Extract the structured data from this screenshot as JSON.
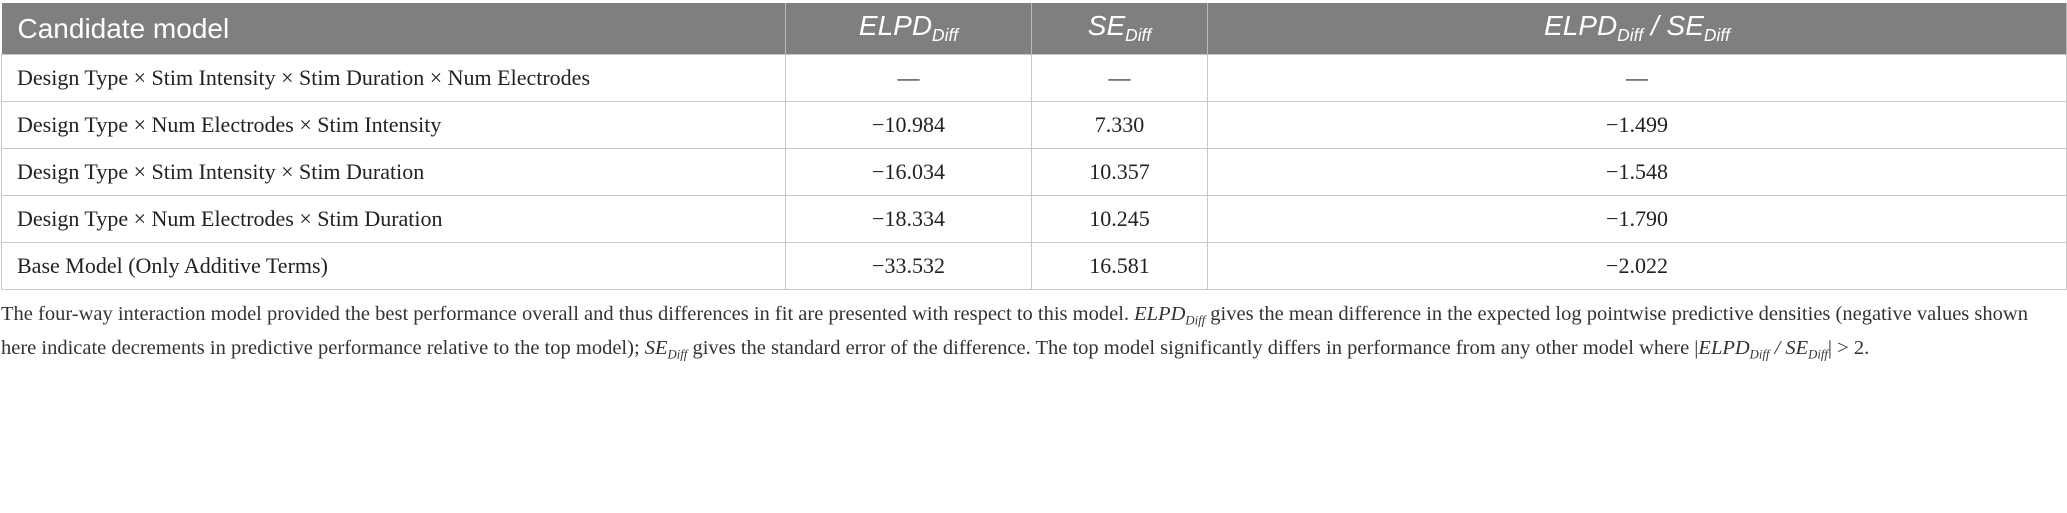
{
  "table": {
    "header": [
      [
        {
          "text": "Candidate model"
        }
      ],
      [
        {
          "italic": "ELPD"
        },
        {
          "sub": "Diff"
        }
      ],
      [
        {
          "italic": "SE"
        },
        {
          "sub": "Diff"
        }
      ],
      [
        {
          "italic": "ELPD"
        },
        {
          "sub": "Diff"
        },
        {
          "italic": " / SE"
        },
        {
          "sub": "Diff"
        }
      ]
    ],
    "rows": [
      [
        "Design Type × Stim Intensity × Stim Duration × Num Electrodes",
        "—",
        "—",
        "—"
      ],
      [
        "Design Type × Num Electrodes × Stim Intensity",
        "−10.984",
        "7.330",
        "−1.499"
      ],
      [
        "Design Type × Stim Intensity × Stim Duration",
        "−16.034",
        "10.357",
        "−1.548"
      ],
      [
        "Design Type × Num Electrodes × Stim Duration",
        "−18.334",
        "10.245",
        "−1.790"
      ],
      [
        "Base Model (Only Additive Terms)",
        "−33.532",
        "16.581",
        "−2.022"
      ]
    ]
  },
  "footnote": [
    {
      "text": "The four-way interaction model provided the best performance overall and thus differences in fit are presented with respect to this model. "
    },
    {
      "italic": "ELPD"
    },
    {
      "sub": "Diff"
    },
    {
      "text": " gives the mean difference in the expected log pointwise predictive densities (negative values shown here indicate decrements in predictive performance relative to the top model); "
    },
    {
      "italic": "SE"
    },
    {
      "sub": "Diff"
    },
    {
      "text": " gives the standard error of the difference. The top model significantly differs in performance from any other model where |"
    },
    {
      "italic": "ELPD"
    },
    {
      "sub": "Diff"
    },
    {
      "italic": " / SE"
    },
    {
      "sub": "Diff"
    },
    {
      "text": "| > 2."
    }
  ]
}
